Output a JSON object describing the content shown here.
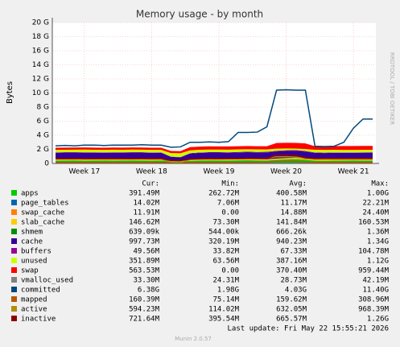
{
  "chart_data": {
    "type": "area",
    "title": "Memory usage - by month",
    "y_label": "Bytes",
    "side_text": "RRDTOOL / TOBI OETIKER",
    "categories": [
      null,
      null,
      null,
      "Week 17",
      null,
      null,
      null,
      null,
      null,
      null,
      "Week 18",
      null,
      null,
      null,
      null,
      null,
      null,
      "Week 19",
      null,
      null,
      null,
      null,
      null,
      null,
      "Week 20",
      null,
      null,
      null,
      null,
      null,
      null,
      "Week 21",
      null,
      null
    ],
    "ylim": [
      0,
      20
    ],
    "yticks": [
      0,
      {
        "value": 2,
        "label": "2 G"
      },
      {
        "value": 4,
        "label": "4 G"
      },
      {
        "value": 6,
        "label": "6 G"
      },
      {
        "value": 8,
        "label": "8 G"
      },
      {
        "value": 10,
        "label": "10 G"
      },
      {
        "value": 12,
        "label": "12 G"
      },
      {
        "value": 14,
        "label": "14 G"
      },
      {
        "value": 16,
        "label": "16 G"
      },
      {
        "value": 18,
        "label": "18 G"
      },
      {
        "value": 20,
        "label": "20 G"
      }
    ],
    "grid": true,
    "legend_headers": [
      "Cur:",
      "Min:",
      "Avg:",
      "Max:"
    ],
    "series": [
      {
        "name": "apps",
        "color": "#00cc00",
        "kind": "area",
        "stats": [
          "391.49M",
          "262.72M",
          "400.58M",
          "1.00G"
        ],
        "values": [
          0.39,
          0.4,
          0.42,
          0.38,
          0.4,
          0.41,
          0.39,
          0.4,
          0.42,
          0.4,
          0.38,
          0.4,
          0.3,
          0.28,
          0.35,
          0.4,
          0.42,
          0.41,
          0.4,
          0.43,
          0.45,
          0.42,
          0.4,
          0.5,
          0.55,
          0.6,
          0.52,
          0.38,
          0.36,
          0.38,
          0.39,
          0.4,
          0.39,
          0.39
        ]
      },
      {
        "name": "page_tables",
        "color": "#0066b3",
        "kind": "area",
        "stats": [
          "14.02M",
          "7.06M",
          "11.17M",
          "22.21M"
        ],
        "values": [
          0.011,
          0.011,
          0.011,
          0.011,
          0.011,
          0.011,
          0.011,
          0.011,
          0.011,
          0.011,
          0.011,
          0.011,
          0.008,
          0.008,
          0.011,
          0.011,
          0.011,
          0.011,
          0.011,
          0.012,
          0.012,
          0.012,
          0.013,
          0.02,
          0.021,
          0.02,
          0.014,
          0.011,
          0.011,
          0.011,
          0.012,
          0.013,
          0.014,
          0.014
        ]
      },
      {
        "name": "swap_cache",
        "color": "#ff8000",
        "kind": "area",
        "stats": [
          "11.91M",
          "0.00",
          "14.88M",
          "24.40M"
        ],
        "values": [
          0.015,
          0.015,
          0.015,
          0.015,
          0.015,
          0.015,
          0.015,
          0.015,
          0.015,
          0.015,
          0.015,
          0.015,
          0.0,
          0.0,
          0.012,
          0.014,
          0.015,
          0.015,
          0.015,
          0.016,
          0.016,
          0.017,
          0.018,
          0.022,
          0.024,
          0.023,
          0.02,
          0.014,
          0.013,
          0.012,
          0.012,
          0.012,
          0.012,
          0.012
        ]
      },
      {
        "name": "slab_cache",
        "color": "#ffcc00",
        "kind": "area",
        "stats": [
          "146.62M",
          "73.30M",
          "141.84M",
          "160.53M"
        ],
        "values": [
          0.14,
          0.14,
          0.141,
          0.142,
          0.14,
          0.139,
          0.14,
          0.141,
          0.142,
          0.14,
          0.141,
          0.14,
          0.08,
          0.075,
          0.13,
          0.14,
          0.141,
          0.142,
          0.143,
          0.144,
          0.145,
          0.146,
          0.15,
          0.155,
          0.157,
          0.156,
          0.15,
          0.145,
          0.144,
          0.145,
          0.146,
          0.146,
          0.147,
          0.147
        ]
      },
      {
        "name": "shmem",
        "color": "#008f00",
        "kind": "area",
        "stats": [
          "639.09k",
          "544.00k",
          "666.26k",
          "1.36M"
        ],
        "values": [
          0.0007,
          0.0007,
          0.0007,
          0.0007,
          0.0007,
          0.0007,
          0.0007,
          0.0007,
          0.0007,
          0.0007,
          0.0007,
          0.0007,
          0.0006,
          0.0006,
          0.0007,
          0.0007,
          0.0007,
          0.0007,
          0.0007,
          0.0007,
          0.0007,
          0.0007,
          0.0007,
          0.0012,
          0.0013,
          0.0012,
          0.0008,
          0.0007,
          0.0006,
          0.0006,
          0.0006,
          0.0006,
          0.0006,
          0.0006
        ]
      },
      {
        "name": "cache",
        "color": "#330099",
        "kind": "area",
        "stats": [
          "997.73M",
          "320.19M",
          "940.23M",
          "1.34G"
        ],
        "values": [
          0.95,
          0.96,
          0.94,
          0.97,
          0.95,
          0.93,
          0.96,
          0.95,
          0.94,
          0.96,
          0.95,
          0.94,
          0.55,
          0.5,
          0.9,
          0.93,
          0.95,
          0.96,
          0.94,
          0.95,
          0.97,
          0.96,
          0.98,
          1.0,
          1.02,
          1.0,
          0.98,
          0.95,
          0.94,
          0.96,
          0.95,
          0.94,
          0.96,
          0.97
        ]
      },
      {
        "name": "buffers",
        "color": "#990099",
        "kind": "area",
        "stats": [
          "49.56M",
          "33.82M",
          "67.33M",
          "104.78M"
        ],
        "values": [
          0.067,
          0.068,
          0.066,
          0.067,
          0.068,
          0.067,
          0.066,
          0.067,
          0.068,
          0.067,
          0.066,
          0.067,
          0.035,
          0.034,
          0.06,
          0.065,
          0.067,
          0.068,
          0.07,
          0.072,
          0.075,
          0.08,
          0.09,
          0.1,
          0.102,
          0.098,
          0.08,
          0.06,
          0.055,
          0.052,
          0.05,
          0.05,
          0.049,
          0.049
        ]
      },
      {
        "name": "unused",
        "color": "#ccff00",
        "kind": "area",
        "stats": [
          "351.89M",
          "63.56M",
          "387.16M",
          "1.12G"
        ],
        "values": [
          0.36,
          0.35,
          0.37,
          0.38,
          0.36,
          0.35,
          0.37,
          0.36,
          0.38,
          0.37,
          0.36,
          0.35,
          0.5,
          0.55,
          0.4,
          0.38,
          0.37,
          0.36,
          0.38,
          0.37,
          0.35,
          0.36,
          0.34,
          0.3,
          0.25,
          0.22,
          0.28,
          0.38,
          0.39,
          0.37,
          0.36,
          0.35,
          0.35,
          0.35
        ]
      },
      {
        "name": "swap",
        "color": "#ff0000",
        "kind": "area",
        "stats": [
          "563.53M",
          "0.00",
          "370.40M",
          "959.44M"
        ],
        "values": [
          0.3,
          0.3,
          0.3,
          0.3,
          0.3,
          0.3,
          0.3,
          0.3,
          0.3,
          0.3,
          0.3,
          0.3,
          0.3,
          0.3,
          0.45,
          0.45,
          0.45,
          0.45,
          0.45,
          0.45,
          0.45,
          0.45,
          0.45,
          0.8,
          0.8,
          0.8,
          0.8,
          0.5,
          0.5,
          0.52,
          0.55,
          0.56,
          0.56,
          0.56
        ]
      },
      {
        "name": "vmalloc_used",
        "color": "#808080",
        "kind": "line",
        "stats": [
          "33.30M",
          "24.31M",
          "28.73M",
          "42.19M"
        ],
        "values": [
          0.028,
          0.028,
          0.028,
          0.028,
          0.028,
          0.028,
          0.028,
          0.028,
          0.028,
          0.028,
          0.028,
          0.028,
          0.025,
          0.025,
          0.028,
          0.028,
          0.028,
          0.028,
          0.028,
          0.029,
          0.029,
          0.029,
          0.03,
          0.04,
          0.041,
          0.04,
          0.033,
          0.032,
          0.032,
          0.032,
          0.033,
          0.033,
          0.033,
          0.033
        ]
      },
      {
        "name": "committed",
        "color": "#00487d",
        "kind": "line",
        "stats": [
          "6.38G",
          "1.98G",
          "4.03G",
          "11.40G"
        ],
        "values": [
          2.5,
          2.55,
          2.5,
          2.6,
          2.6,
          2.55,
          2.6,
          2.6,
          2.6,
          2.65,
          2.6,
          2.6,
          2.3,
          2.35,
          3.0,
          3.0,
          3.05,
          3.0,
          3.1,
          4.4,
          4.4,
          4.45,
          5.2,
          10.4,
          10.45,
          10.4,
          10.4,
          2.45,
          2.4,
          2.45,
          3.0,
          5.0,
          6.3,
          6.3
        ]
      },
      {
        "name": "mapped",
        "color": "#b35a00",
        "kind": "line",
        "stats": [
          "160.39M",
          "75.14M",
          "159.62M",
          "308.96M"
        ],
        "values": [
          0.16,
          0.16,
          0.158,
          0.16,
          0.161,
          0.16,
          0.159,
          0.16,
          0.16,
          0.161,
          0.16,
          0.16,
          0.08,
          0.076,
          0.15,
          0.158,
          0.16,
          0.16,
          0.161,
          0.162,
          0.165,
          0.17,
          0.18,
          0.3,
          0.305,
          0.29,
          0.2,
          0.16,
          0.158,
          0.159,
          0.16,
          0.16,
          0.16,
          0.16
        ]
      },
      {
        "name": "active",
        "color": "#b38f00",
        "kind": "line",
        "stats": [
          "594.23M",
          "114.02M",
          "632.05M",
          "968.39M"
        ],
        "values": [
          0.62,
          0.63,
          0.62,
          0.64,
          0.63,
          0.62,
          0.63,
          0.62,
          0.63,
          0.64,
          0.63,
          0.62,
          0.2,
          0.12,
          0.55,
          0.6,
          0.62,
          0.63,
          0.64,
          0.66,
          0.68,
          0.7,
          0.75,
          0.94,
          0.95,
          0.9,
          0.7,
          0.6,
          0.59,
          0.58,
          0.59,
          0.59,
          0.59,
          0.59
        ]
      },
      {
        "name": "inactive",
        "color": "#8f0000",
        "kind": "line",
        "stats": [
          "721.64M",
          "395.54M",
          "665.57M",
          "1.26G"
        ],
        "values": [
          0.68,
          0.67,
          0.69,
          0.68,
          0.67,
          0.68,
          0.69,
          0.68,
          0.67,
          0.68,
          0.69,
          0.68,
          0.42,
          0.4,
          0.62,
          0.66,
          0.68,
          0.67,
          0.68,
          0.69,
          0.7,
          0.71,
          0.72,
          1.2,
          1.22,
          1.15,
          0.8,
          0.7,
          0.71,
          0.72,
          0.72,
          0.72,
          0.72,
          0.72
        ]
      }
    ],
    "last_update": "Last update: Fri May 22 15:55:21 2026",
    "version": "Munin 2.0.57"
  }
}
